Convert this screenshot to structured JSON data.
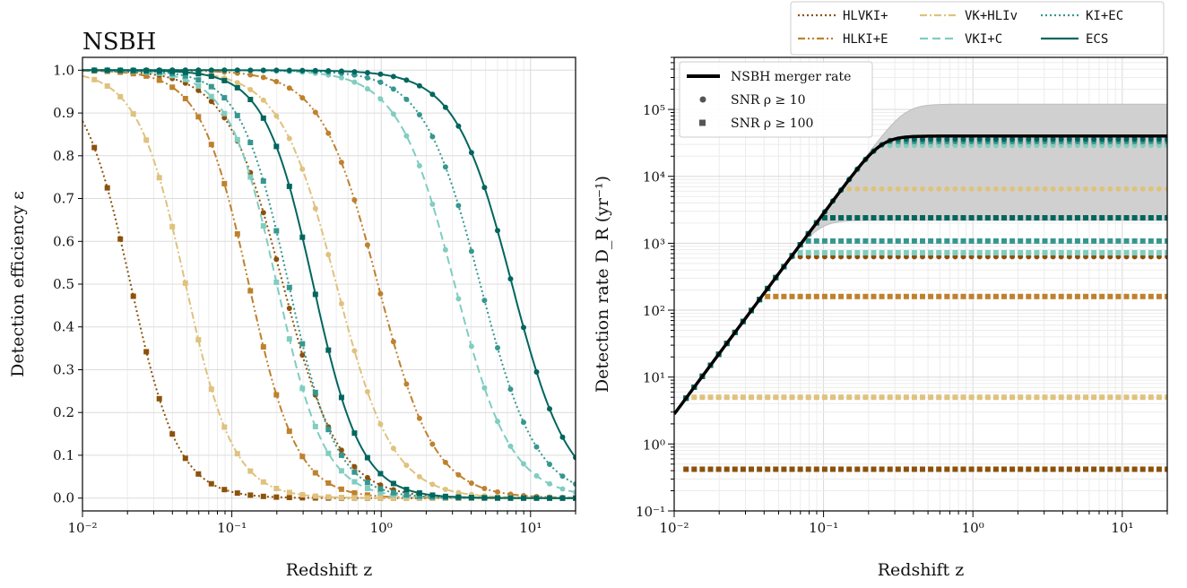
{
  "figure": {
    "legend_top": {
      "placement": "top-right",
      "entries": [
        {
          "key": "HLVKI+",
          "label": "HLVKI+",
          "color": "#8c510a",
          "dash": "dot"
        },
        {
          "key": "HLKI+E",
          "label": "HLKI+E",
          "color": "#bf812d",
          "dash": "dashdotdot"
        },
        {
          "key": "VK+HLIv",
          "label": "VK+HLIv",
          "color": "#dfc27d",
          "dash": "dashdot"
        },
        {
          "key": "VKI+C",
          "label": "VKI+C",
          "color": "#80cdc1",
          "dash": "dash"
        },
        {
          "key": "KI+EC",
          "label": "KI+EC",
          "color": "#35978f",
          "dash": "dot"
        },
        {
          "key": "ECS",
          "label": "ECS",
          "color": "#01665e",
          "dash": "solid"
        }
      ]
    },
    "legend_right": {
      "placement": "upper-left",
      "entries": [
        {
          "label": "NSBH merger rate",
          "marker": "line"
        },
        {
          "label": "SNR ρ ≥ 10",
          "marker": "circle"
        },
        {
          "label": "SNR ρ ≥ 100",
          "marker": "square"
        }
      ]
    }
  },
  "chart_data": [
    {
      "type": "line",
      "title": "NSBH",
      "xlabel": "Redshift z",
      "ylabel": "Detection efficiency ε",
      "xscale": "log",
      "xlim": [
        0.01,
        20
      ],
      "ylim": [
        -0.03,
        1.03
      ],
      "xticks": [
        "10⁻²",
        "10⁻¹",
        "10⁰",
        "10¹"
      ],
      "yticks": [
        "0.0",
        "0.1",
        "0.2",
        "0.3",
        "0.4",
        "0.5",
        "0.6",
        "0.7",
        "0.8",
        "0.9",
        "1.0"
      ],
      "grid": true,
      "series": [
        {
          "name": "HLVKI+",
          "snr10_z50": 0.22,
          "snr100_z50": 0.021
        },
        {
          "name": "HLKI+E",
          "snr10_z50": 0.95,
          "snr100_z50": 0.13
        },
        {
          "name": "VK+HLIv",
          "snr10_z50": 0.5,
          "snr100_z50": 0.049
        },
        {
          "name": "VKI+C",
          "snr10_z50": 3.1,
          "snr100_z50": 0.2
        },
        {
          "name": "KI+EC",
          "snr10_z50": 4.6,
          "snr100_z50": 0.24
        },
        {
          "name": "ECS",
          "snr10_z50": 7.5,
          "snr100_z50": 0.35
        }
      ]
    },
    {
      "type": "line",
      "xlabel": "Redshift z",
      "ylabel": "Detection rate D_R (yr⁻¹)",
      "xscale": "log",
      "yscale": "log",
      "xlim": [
        0.01,
        20
      ],
      "ylim": [
        0.1,
        600000
      ],
      "xticks": [
        "10⁻²",
        "10⁻¹",
        "10⁰",
        "10¹"
      ],
      "yticks": [
        "10⁻¹",
        "10⁰",
        "10¹",
        "10²",
        "10³",
        "10⁴",
        "10⁵"
      ],
      "grid": true,
      "merger_rate": {
        "name": "NSBH merger rate",
        "plateau": 40000,
        "band_upper": 120000,
        "band_lower": 2200
      },
      "series": [
        {
          "name": "HLVKI+",
          "snr10_plateau": 630,
          "snr100_plateau": 0.42
        },
        {
          "name": "HLKI+E",
          "snr10_plateau": 30000,
          "snr100_plateau": 160
        },
        {
          "name": "VK+HLIv",
          "snr10_plateau": 6500,
          "snr100_plateau": 5.0
        },
        {
          "name": "VKI+C",
          "snr10_plateau": 29000,
          "snr100_plateau": 720
        },
        {
          "name": "KI+EC",
          "snr10_plateau": 33000,
          "snr100_plateau": 1080
        },
        {
          "name": "ECS",
          "snr10_plateau": 36000,
          "snr100_plateau": 2400
        }
      ]
    }
  ]
}
